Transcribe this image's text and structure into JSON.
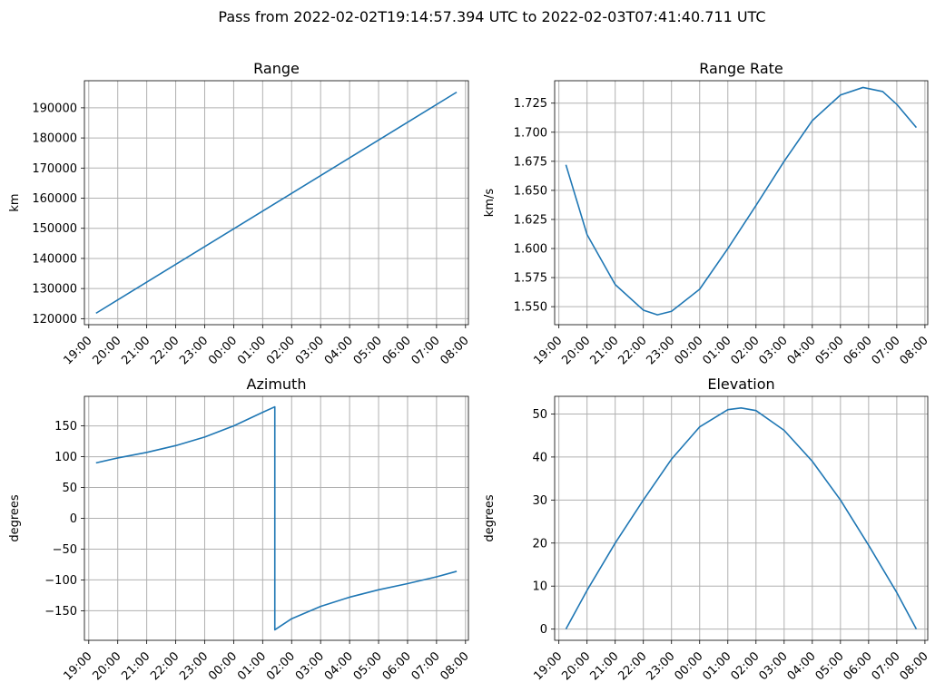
{
  "figure": {
    "suptitle": "Pass from 2022-02-02T19:14:57.394 UTC to 2022-02-03T07:41:40.711 UTC",
    "line_color": "#1f77b4",
    "grid_color": "#b0b0b0"
  },
  "chart_data": [
    {
      "type": "line",
      "title": "Range",
      "xlabel": "",
      "ylabel": "km",
      "grid": true,
      "xlim": [
        18.85,
        8.1
      ],
      "x_ticks": [
        "19:00",
        "20:00",
        "21:00",
        "22:00",
        "23:00",
        "00:00",
        "01:00",
        "02:00",
        "03:00",
        "04:00",
        "05:00",
        "06:00",
        "07:00",
        "08:00"
      ],
      "ylim": [
        118000,
        199000
      ],
      "y_ticks": [
        120000,
        130000,
        140000,
        150000,
        160000,
        170000,
        180000,
        190000
      ],
      "series": [
        {
          "name": "Range",
          "x_start": "19:15",
          "x_end": "07:42",
          "x_hours": [
            19.25,
            7.695
          ],
          "y": [
            121800,
            195200
          ]
        }
      ]
    },
    {
      "type": "line",
      "title": "Range Rate",
      "xlabel": "",
      "ylabel": "km/s",
      "grid": true,
      "xlim": [
        18.85,
        8.1
      ],
      "x_ticks": [
        "19:00",
        "20:00",
        "21:00",
        "22:00",
        "23:00",
        "00:00",
        "01:00",
        "02:00",
        "03:00",
        "04:00",
        "05:00",
        "06:00",
        "07:00",
        "08:00"
      ],
      "ylim": [
        1.5345,
        1.7443
      ],
      "y_ticks": [
        1.55,
        1.575,
        1.6,
        1.625,
        1.65,
        1.675,
        1.7,
        1.725
      ],
      "y_tick_labels": [
        "1.550",
        "1.575",
        "1.600",
        "1.625",
        "1.650",
        "1.675",
        "1.700",
        "1.725"
      ],
      "series": [
        {
          "name": "Range Rate",
          "x_hours": [
            19.25,
            20.0,
            21.0,
            22.0,
            22.5,
            23.0,
            24.0,
            25.0,
            26.0,
            27.0,
            28.0,
            29.0,
            29.8,
            30.5,
            31.0,
            31.695
          ],
          "y": [
            1.672,
            1.612,
            1.569,
            1.547,
            1.543,
            1.546,
            1.565,
            1.6,
            1.637,
            1.675,
            1.71,
            1.732,
            1.7385,
            1.735,
            1.724,
            1.704
          ]
        }
      ]
    },
    {
      "type": "line",
      "title": "Azimuth",
      "xlabel": "",
      "ylabel": "degrees",
      "grid": true,
      "xlim": [
        18.85,
        8.1
      ],
      "x_ticks": [
        "19:00",
        "20:00",
        "21:00",
        "22:00",
        "23:00",
        "00:00",
        "01:00",
        "02:00",
        "03:00",
        "04:00",
        "05:00",
        "06:00",
        "07:00",
        "08:00"
      ],
      "ylim": [
        -198,
        198
      ],
      "y_ticks": [
        -150,
        -100,
        -50,
        0,
        50,
        100,
        150
      ],
      "series": [
        {
          "name": "Azimuth",
          "x_hours": [
            19.25,
            20.0,
            21.0,
            22.0,
            23.0,
            24.0,
            25.0,
            25.42,
            25.42,
            26.0,
            27.0,
            28.0,
            29.0,
            30.0,
            31.0,
            31.695
          ],
          "y": [
            90,
            98,
            107,
            118,
            132,
            150,
            172,
            181,
            -181,
            -163,
            -143,
            -128,
            -116,
            -106,
            -95,
            -86
          ]
        }
      ]
    },
    {
      "type": "line",
      "title": "Elevation",
      "xlabel": "",
      "ylabel": "degrees",
      "grid": true,
      "xlim": [
        18.85,
        8.1
      ],
      "x_ticks": [
        "19:00",
        "20:00",
        "21:00",
        "22:00",
        "23:00",
        "00:00",
        "01:00",
        "02:00",
        "03:00",
        "04:00",
        "05:00",
        "06:00",
        "07:00",
        "08:00"
      ],
      "ylim": [
        -2.6,
        54.1
      ],
      "y_ticks": [
        0,
        10,
        20,
        30,
        40,
        50
      ],
      "series": [
        {
          "name": "Elevation",
          "x_hours": [
            19.25,
            20.0,
            21.0,
            22.0,
            23.0,
            24.0,
            25.0,
            25.47,
            26.0,
            27.0,
            28.0,
            29.0,
            30.0,
            31.0,
            31.695
          ],
          "y": [
            0,
            9,
            20,
            30,
            39.5,
            47,
            51,
            51.4,
            50.8,
            46.2,
            39,
            30,
            19.5,
            8.5,
            0
          ]
        }
      ]
    }
  ]
}
